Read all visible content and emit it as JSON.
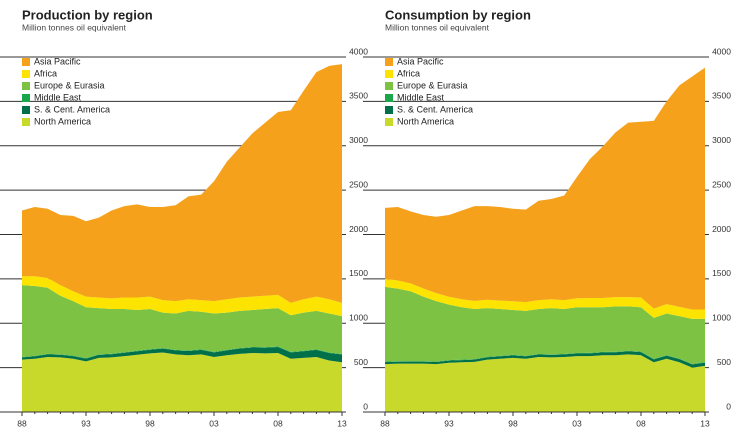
{
  "chart_data": [
    {
      "type": "area",
      "title": "Production by region",
      "subtitle": "Million tonnes oil equivalent",
      "categories": [
        "88",
        null,
        null,
        null,
        null,
        "93",
        null,
        null,
        null,
        null,
        "98",
        null,
        null,
        null,
        null,
        "03",
        null,
        null,
        null,
        null,
        "08",
        null,
        null,
        null,
        null,
        "13"
      ],
      "ylim": [
        0,
        4000
      ],
      "yticks": [
        0,
        500,
        1000,
        1500,
        2000,
        2500,
        3000,
        3500,
        4000
      ],
      "stacked": true,
      "series": [
        {
          "name": "North America",
          "color": "#c9d92b",
          "values": [
            590,
            600,
            620,
            615,
            600,
            570,
            610,
            615,
            630,
            645,
            660,
            670,
            650,
            640,
            650,
            620,
            640,
            655,
            665,
            660,
            665,
            600,
            610,
            620,
            580,
            560
          ]
        },
        {
          "name": "S. & Cent. America",
          "color": "#00704a",
          "values": [
            25,
            28,
            30,
            30,
            30,
            32,
            34,
            36,
            38,
            40,
            42,
            45,
            45,
            48,
            50,
            52,
            55,
            60,
            62,
            65,
            68,
            72,
            75,
            80,
            85,
            88
          ]
        },
        {
          "name": "Middle East",
          "color": "#1aa64a",
          "values": [
            5,
            5,
            5,
            5,
            5,
            5,
            5,
            5,
            5,
            5,
            5,
            5,
            5,
            5,
            5,
            5,
            5,
            5,
            5,
            5,
            5,
            5,
            5,
            5,
            5,
            5
          ]
        },
        {
          "name": "Europe & Eurasia",
          "color": "#7dc243",
          "values": [
            810,
            787,
            745,
            660,
            615,
            573,
            521,
            504,
            487,
            460,
            453,
            400,
            410,
            447,
            425,
            433,
            420,
            420,
            418,
            430,
            432,
            413,
            430,
            435,
            440,
            427
          ]
        },
        {
          "name": "Africa",
          "color": "#fde400",
          "values": [
            100,
            110,
            110,
            120,
            110,
            120,
            120,
            120,
            130,
            140,
            140,
            140,
            140,
            130,
            130,
            140,
            150,
            150,
            150,
            150,
            150,
            140,
            150,
            160,
            160,
            150
          ]
        },
        {
          "name": "Asia Pacific",
          "color": "#f5a11c",
          "values": [
            740,
            780,
            780,
            790,
            850,
            850,
            900,
            990,
            1030,
            1050,
            1010,
            1050,
            1080,
            1160,
            1190,
            1350,
            1550,
            1690,
            1840,
            1950,
            2060,
            2170,
            2350,
            2530,
            2630,
            2690
          ]
        }
      ]
    },
    {
      "type": "area",
      "title": "Consumption by region",
      "subtitle": "Million tonnes oil equivalent",
      "categories": [
        "88",
        null,
        null,
        null,
        null,
        "93",
        null,
        null,
        null,
        null,
        "98",
        null,
        null,
        null,
        null,
        "03",
        null,
        null,
        null,
        null,
        "08",
        null,
        null,
        null,
        null,
        "13"
      ],
      "ylim": [
        0,
        4000
      ],
      "yticks": [
        0,
        500,
        1000,
        1500,
        2000,
        2500,
        3000,
        3500,
        4000
      ],
      "stacked": true,
      "series": [
        {
          "name": "North America",
          "color": "#c9d92b",
          "values": [
            540,
            545,
            545,
            545,
            540,
            555,
            560,
            565,
            590,
            600,
            610,
            600,
            620,
            615,
            620,
            630,
            630,
            640,
            640,
            650,
            640,
            560,
            600,
            560,
            500,
            520
          ]
        },
        {
          "name": "S. & Cent. America",
          "color": "#00704a",
          "values": [
            22,
            22,
            23,
            23,
            23,
            24,
            25,
            26,
            27,
            28,
            28,
            28,
            29,
            29,
            29,
            30,
            31,
            32,
            33,
            34,
            35,
            33,
            35,
            36,
            36,
            37
          ]
        },
        {
          "name": "Middle East",
          "color": "#1aa64a",
          "values": [
            5,
            5,
            5,
            5,
            5,
            5,
            5,
            5,
            5,
            5,
            5,
            5,
            5,
            5,
            5,
            5,
            5,
            5,
            5,
            5,
            5,
            5,
            5,
            5,
            5,
            5
          ]
        },
        {
          "name": "Europe & Eurasia",
          "color": "#7dc243",
          "values": [
            843,
            818,
            787,
            727,
            682,
            626,
            590,
            564,
            548,
            527,
            507,
            507,
            506,
            521,
            506,
            515,
            514,
            503,
            512,
            501,
            500,
            462,
            470,
            479,
            509,
            488
          ]
        },
        {
          "name": "Africa",
          "color": "#fde400",
          "values": [
            90,
            92,
            90,
            92,
            90,
            88,
            90,
            92,
            95,
            95,
            98,
            98,
            100,
            100,
            100,
            102,
            105,
            105,
            105,
            105,
            110,
            105,
            105,
            105,
            105,
            105
          ]
        },
        {
          "name": "Asia Pacific",
          "color": "#f5a11c",
          "values": [
            800,
            828,
            810,
            828,
            860,
            922,
            1000,
            1068,
            1055,
            1055,
            1042,
            1042,
            1120,
            1130,
            1180,
            1368,
            1565,
            1705,
            1855,
            1965,
            1980,
            2115,
            2285,
            2495,
            2625,
            2725
          ]
        }
      ]
    }
  ]
}
